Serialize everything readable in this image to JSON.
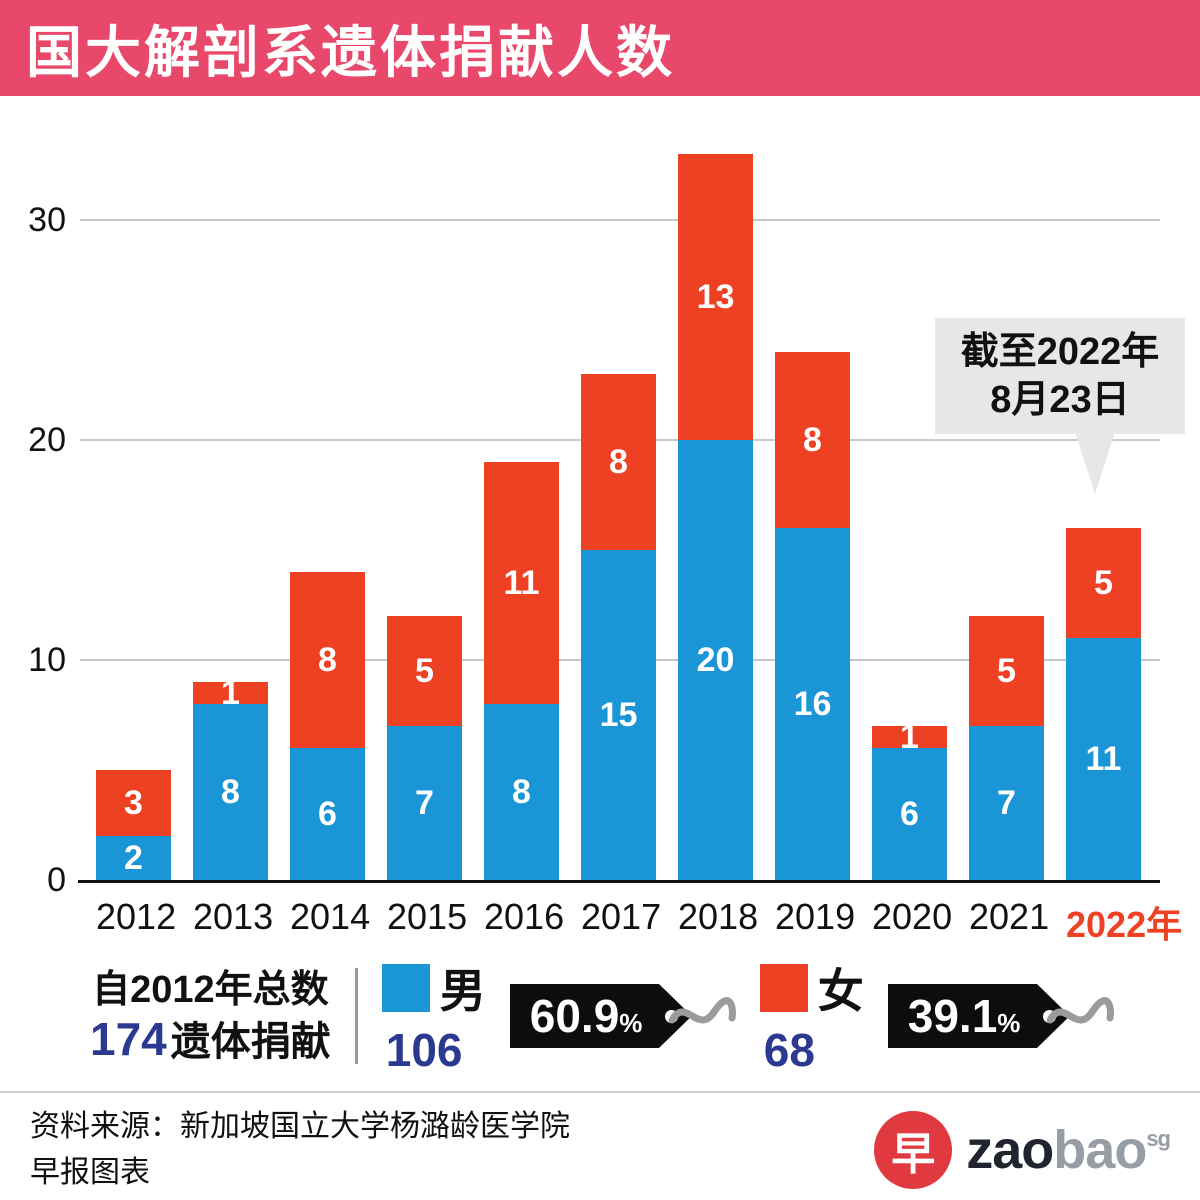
{
  "header": {
    "title": "国大解剖系遗体捐献人数"
  },
  "chart_data": {
    "type": "bar",
    "stacked": true,
    "title": "国大解剖系遗体捐献人数",
    "categories": [
      "2012",
      "2013",
      "2014",
      "2015",
      "2016",
      "2017",
      "2018",
      "2019",
      "2020",
      "2021",
      "2022年"
    ],
    "series": [
      {
        "name": "男",
        "color": "#1a95d5",
        "values": [
          2,
          8,
          6,
          7,
          8,
          15,
          20,
          16,
          6,
          7,
          11
        ]
      },
      {
        "name": "女",
        "color": "#ee4023",
        "values": [
          3,
          1,
          8,
          5,
          11,
          8,
          13,
          8,
          1,
          5,
          5
        ]
      }
    ],
    "yticks": [
      0,
      10,
      20,
      30
    ],
    "ylim": [
      0,
      34
    ],
    "grid": "horizontal",
    "legend_position": "bottom",
    "highlight_last_category_color": "#ee4023"
  },
  "callout": {
    "line1": "截至2022年",
    "line2": "8月23日"
  },
  "summary": {
    "line1": "自2012年总数",
    "total": "174",
    "line2": "遗体捐献",
    "male": {
      "label": "男",
      "value": "106",
      "percent": "60.9",
      "percent_unit": "%"
    },
    "female": {
      "label": "女",
      "value": "68",
      "percent": "39.1",
      "percent_unit": "%"
    }
  },
  "colors": {
    "header_bg": "#e8486a",
    "male": "#1a95d5",
    "female": "#ee4023",
    "accent_number": "#2b3990",
    "tag_bg": "#0d0d0d",
    "callout_bg": "#e7e7e7",
    "logo_red": "#e0393f"
  },
  "footer": {
    "source": "资料来源：新加坡国立大学杨潞龄医学院",
    "credit": "早报图表",
    "logo": {
      "glyph": "早",
      "zao": "zao",
      "bao": "bao",
      "sg": "sg"
    }
  }
}
